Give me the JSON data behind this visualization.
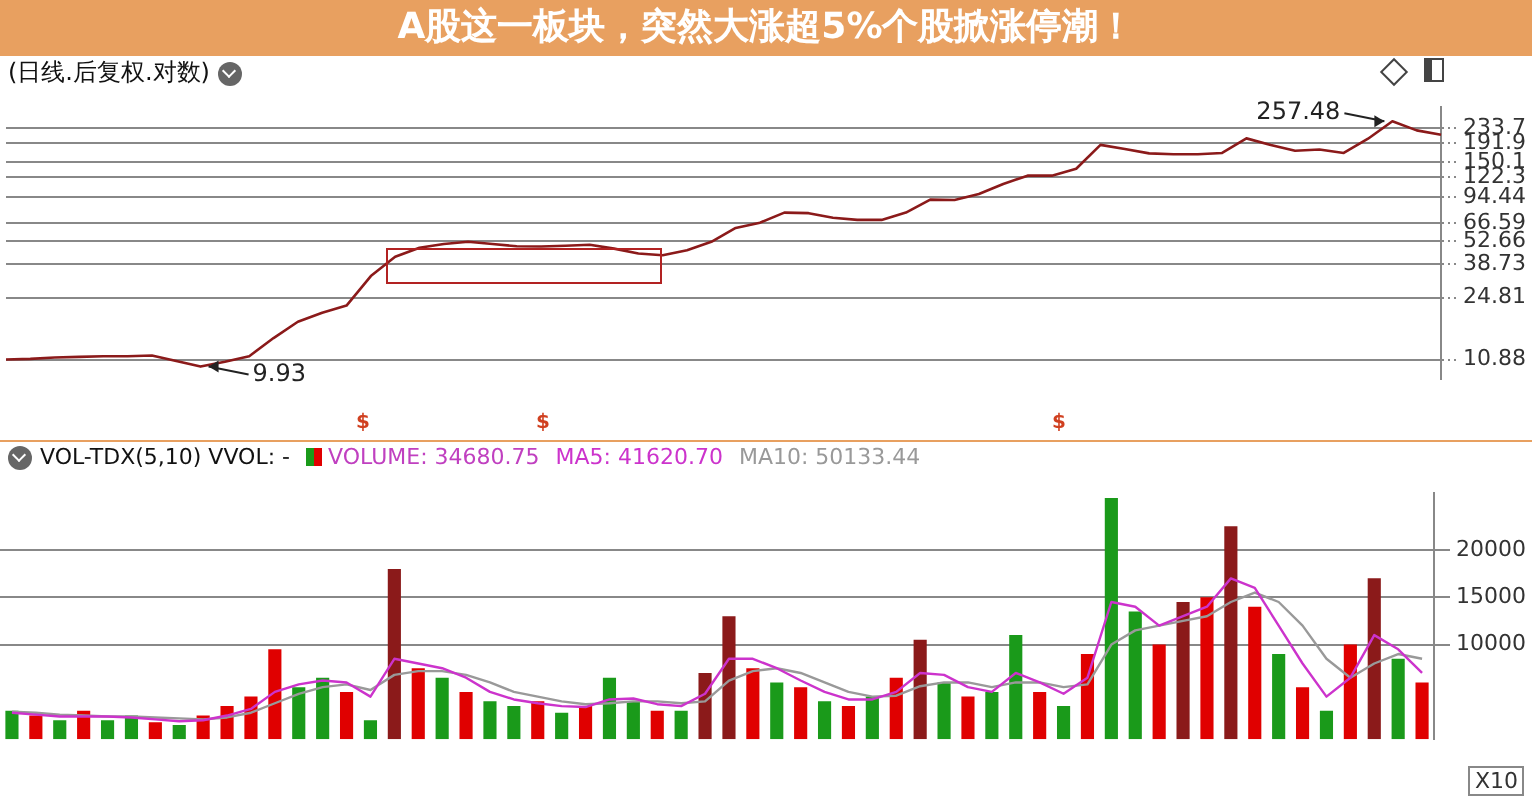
{
  "chart_data": [
    {
      "type": "line",
      "title": "A股这一板块，突然大涨超5%个股掀涨停潮！",
      "subtitle": "(日线.后复权.对数)",
      "categories": [
        null,
        null,
        null,
        null,
        null,
        null,
        null,
        null,
        null,
        null,
        null,
        null,
        null,
        null,
        null,
        null,
        null,
        null,
        null,
        null,
        null,
        null,
        null,
        null,
        null,
        null,
        null,
        null,
        null,
        null,
        null,
        null,
        null,
        null,
        null,
        null,
        null,
        null,
        null,
        null,
        null,
        null,
        null,
        null,
        null,
        null,
        null,
        null,
        null,
        null,
        null,
        null,
        null,
        null,
        null,
        null,
        null,
        null,
        null,
        null
      ],
      "series": [
        {
          "color": "#8b1a1a",
          "values": [
            10.9,
            11,
            11.2,
            11.3,
            11.4,
            11.4,
            11.5,
            10.7,
            9.93,
            10.6,
            11.4,
            14.5,
            18,
            20.3,
            22.3,
            33,
            42.6,
            48,
            50.5,
            52,
            50.5,
            49,
            48.8,
            49.3,
            50,
            47.5,
            44.5,
            43.5,
            46.5,
            52,
            62.5,
            67,
            76.6,
            76,
            71.5,
            69.5,
            69.5,
            76.6,
            91,
            90.5,
            98,
            112,
            125,
            125,
            137,
            188,
            178,
            168,
            166,
            166,
            169,
            205,
            188,
            174,
            177,
            169,
            204,
            257.48,
            228,
            215
          ],
          "value_labels": [
            null,
            null,
            null,
            null,
            null,
            null,
            null,
            null,
            "9.93",
            null,
            null,
            null,
            null,
            null,
            null,
            null,
            null,
            null,
            null,
            null,
            null,
            null,
            null,
            null,
            null,
            null,
            null,
            null,
            null,
            null,
            null,
            null,
            null,
            null,
            null,
            null,
            null,
            null,
            null,
            null,
            null,
            null,
            null,
            null,
            null,
            null,
            null,
            null,
            null,
            null,
            null,
            null,
            null,
            null,
            null,
            null,
            null,
            "257.48",
            null,
            null
          ]
        }
      ],
      "ylim": [
        8.4,
        310
      ],
      "log": "y",
      "yticks": [
        10.88,
        24.81,
        38.73,
        52.66,
        66.59,
        94.44,
        122.3,
        150.1,
        191.9,
        233.7
      ],
      "grid": "y",
      "annotations": [
        "$",
        "$",
        "$"
      ]
    },
    {
      "type": "bar",
      "title": "VOL-TDX(5,10)  VVOL: -",
      "ylabel": "X10",
      "categories": [
        null,
        null,
        null,
        null,
        null,
        null,
        null,
        null,
        null,
        null,
        null,
        null,
        null,
        null,
        null,
        null,
        null,
        null,
        null,
        null,
        null,
        null,
        null,
        null,
        null,
        null,
        null,
        null,
        null,
        null,
        null,
        null,
        null,
        null,
        null,
        null,
        null,
        null,
        null,
        null,
        null,
        null,
        null,
        null,
        null,
        null,
        null,
        null,
        null,
        null,
        null,
        null,
        null,
        null,
        null,
        null,
        null,
        null,
        null,
        null
      ],
      "series": [
        {
          "name": "VOLUME: 34680.75",
          "values": [
            3000,
            2500,
            2000,
            3000,
            2000,
            2500,
            1800,
            1500,
            2500,
            3500,
            4500,
            9500,
            5500,
            6500,
            5000,
            2000,
            18000,
            7500,
            6500,
            5000,
            4000,
            3500,
            4000,
            2800,
            3500,
            6500,
            4000,
            3000,
            3000,
            7000,
            13000,
            7500,
            6000,
            5500,
            4000,
            3500,
            4500,
            6500,
            10500,
            6000,
            4500,
            5000,
            11000,
            5000,
            3500,
            9000,
            25500,
            13500,
            10000,
            14500,
            15000,
            22500,
            14000,
            9000,
            5500,
            3000,
            10000,
            17000,
            8500,
            6000
          ],
          "colors": [
            "#1a9a1a",
            "#e00000",
            "#1a9a1a",
            "#e00000",
            "#1a9a1a",
            "#1a9a1a",
            "#e00000",
            "#1a9a1a",
            "#e00000",
            "#e00000",
            "#e00000",
            "#e00000",
            "#1a9a1a",
            "#1a9a1a",
            "#e00000",
            "#1a9a1a",
            "#8b1a1a",
            "#e00000",
            "#1a9a1a",
            "#e00000",
            "#1a9a1a",
            "#1a9a1a",
            "#e00000",
            "#1a9a1a",
            "#e00000",
            "#1a9a1a",
            "#1a9a1a",
            "#e00000",
            "#1a9a1a",
            "#8b1a1a",
            "#8b1a1a",
            "#e00000",
            "#1a9a1a",
            "#e00000",
            "#1a9a1a",
            "#e00000",
            "#1a9a1a",
            "#e00000",
            "#8b1a1a",
            "#1a9a1a",
            "#e00000",
            "#1a9a1a",
            "#1a9a1a",
            "#e00000",
            "#1a9a1a",
            "#e00000",
            "#1a9a1a",
            "#1a9a1a",
            "#e00000",
            "#8b1a1a",
            "#e00000",
            "#8b1a1a",
            "#e00000",
            "#1a9a1a",
            "#e00000",
            "#1a9a1a",
            "#e00000",
            "#8b1a1a",
            "#1a9a1a",
            "#e00000"
          ]
        },
        {
          "name": "MA5: 41620.70",
          "type": "line",
          "color": "#cc33cc",
          "values": [
            2800,
            2600,
            2400,
            2400,
            2400,
            2300,
            2100,
            1900,
            2000,
            2500,
            3200,
            5000,
            5800,
            6200,
            6000,
            4500,
            8500,
            8000,
            7500,
            6500,
            5000,
            4200,
            3800,
            3500,
            3400,
            4200,
            4300,
            3700,
            3500,
            4800,
            8500,
            8500,
            7500,
            6200,
            5000,
            4200,
            4200,
            5000,
            7000,
            6800,
            5500,
            5000,
            7000,
            6000,
            4800,
            6500,
            14500,
            14000,
            12000,
            13000,
            14000,
            17000,
            16000,
            12000,
            8000,
            4500,
            6500,
            11000,
            9500,
            7000
          ]
        },
        {
          "name": "MA10: 50133.44",
          "type": "line",
          "color": "#999999",
          "values": [
            2900,
            2800,
            2600,
            2500,
            2400,
            2400,
            2300,
            2200,
            2100,
            2300,
            2800,
            3800,
            4800,
            5500,
            5800,
            5200,
            6800,
            7200,
            7200,
            6800,
            6000,
            5000,
            4500,
            4000,
            3700,
            3800,
            4000,
            4000,
            3800,
            4000,
            6200,
            7200,
            7500,
            7000,
            6000,
            5000,
            4500,
            4600,
            5600,
            6000,
            6000,
            5500,
            6000,
            6000,
            5500,
            5800,
            10000,
            11500,
            12000,
            12500,
            13000,
            14500,
            15500,
            14500,
            12000,
            8500,
            6500,
            8000,
            9000,
            8500
          ]
        }
      ],
      "ylim": [
        0,
        26000
      ],
      "yticks": [
        10000,
        15000,
        20000
      ],
      "grid": "y",
      "legend": "top left"
    }
  ]
}
